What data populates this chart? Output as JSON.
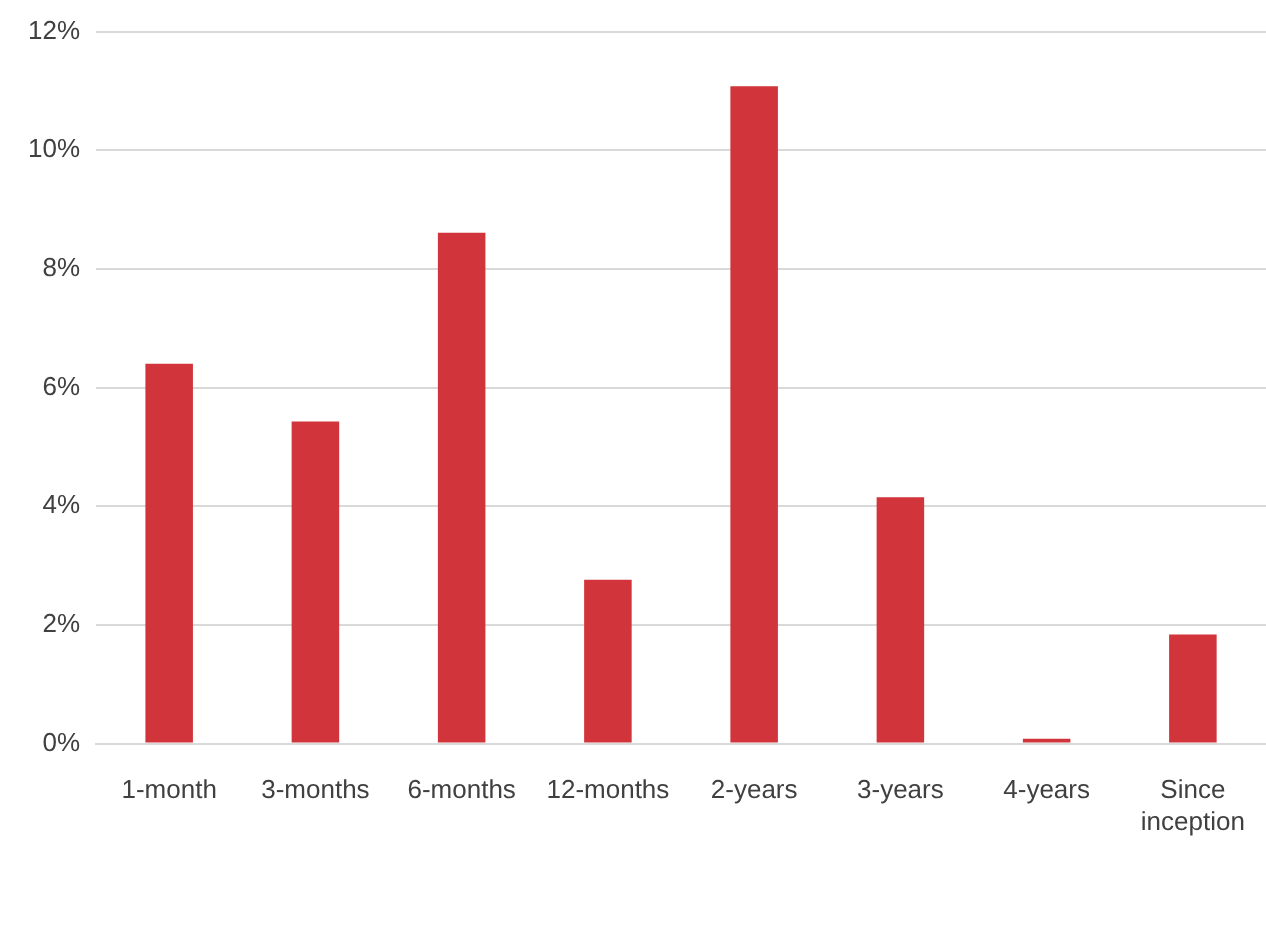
{
  "chart_data": {
    "type": "bar",
    "categories": [
      "1-month",
      "3-months",
      "6-months",
      "12-months",
      "2-years",
      "3-years",
      "4-years",
      "Since inception"
    ],
    "series": [
      {
        "color": "#d1343a",
        "values": [
          6.4,
          5.43,
          8.61,
          2.76,
          11.08,
          4.15,
          0.08,
          1.84
        ]
      }
    ],
    "ylim": [
      0,
      12
    ],
    "yticks": [
      {
        "value": 0,
        "label": "0%"
      },
      {
        "value": 2,
        "label": "2%"
      },
      {
        "value": 4,
        "label": "4%"
      },
      {
        "value": 6,
        "label": "6%"
      },
      {
        "value": 8,
        "label": "8%"
      },
      {
        "value": 10,
        "label": "10%"
      },
      {
        "value": 12,
        "label": "12%"
      }
    ],
    "grid": "y",
    "legend": false
  }
}
